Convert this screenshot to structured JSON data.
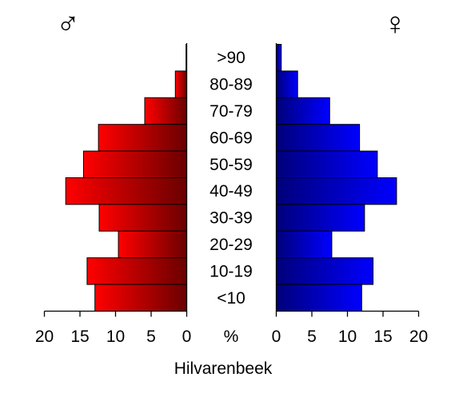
{
  "chart_data": {
    "type": "bar",
    "title": "Hilvarenbeek",
    "categories": [
      ">90",
      "80-89",
      "70-79",
      "60-69",
      "50-59",
      "40-49",
      "30-39",
      "20-29",
      "10-19",
      "<10"
    ],
    "series": [
      {
        "name": "♂",
        "values": [
          0.1,
          1.6,
          5.9,
          12.4,
          14.5,
          17.0,
          12.3,
          9.6,
          14.0,
          12.9
        ],
        "color": "#ee0000"
      },
      {
        "name": "♀",
        "values": [
          0.7,
          3.0,
          7.5,
          11.7,
          14.2,
          16.9,
          12.4,
          7.8,
          13.6,
          12.0
        ],
        "color": "#0000ee"
      }
    ],
    "xlim": [
      0,
      20
    ],
    "ticks": [
      "20",
      "15",
      "10",
      "5",
      "0"
    ],
    "right_ticks": [
      "0",
      "5",
      "10",
      "15",
      "20"
    ],
    "axis_unit": "%",
    "male_symbol": "♂",
    "female_symbol": "♀",
    "grid": false
  }
}
